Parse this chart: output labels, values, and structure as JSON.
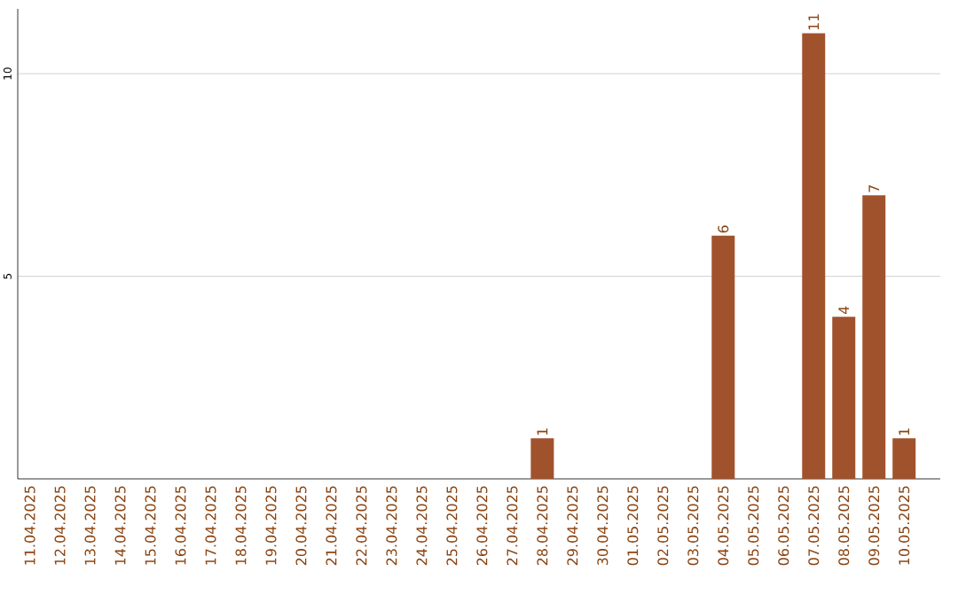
{
  "chart_data": {
    "type": "bar",
    "categories": [
      "11.04.2025",
      "12.04.2025",
      "13.04.2025",
      "14.04.2025",
      "15.04.2025",
      "16.04.2025",
      "17.04.2025",
      "18.04.2025",
      "19.04.2025",
      "20.04.2025",
      "21.04.2025",
      "22.04.2025",
      "23.04.2025",
      "24.04.2025",
      "25.04.2025",
      "26.04.2025",
      "27.04.2025",
      "28.04.2025",
      "29.04.2025",
      "30.04.2025",
      "01.05.2025",
      "02.05.2025",
      "03.05.2025",
      "04.05.2025",
      "05.05.2025",
      "06.05.2025",
      "07.05.2025",
      "08.05.2025",
      "09.05.2025",
      "10.05.2025"
    ],
    "values": [
      0,
      0,
      0,
      0,
      0,
      0,
      0,
      0,
      0,
      0,
      0,
      0,
      0,
      0,
      0,
      0,
      0,
      1,
      0,
      0,
      0,
      0,
      0,
      6,
      0,
      0,
      11,
      4,
      7,
      1
    ],
    "value_labels": [
      null,
      null,
      null,
      null,
      null,
      null,
      null,
      null,
      null,
      null,
      null,
      null,
      null,
      null,
      null,
      null,
      null,
      "1",
      null,
      null,
      null,
      null,
      null,
      "6",
      null,
      null,
      "11",
      "4",
      "7",
      "1"
    ],
    "color": "#a0522d",
    "ylim": [
      0,
      11.6
    ],
    "yticks": [
      5,
      10
    ],
    "grid": "y"
  }
}
